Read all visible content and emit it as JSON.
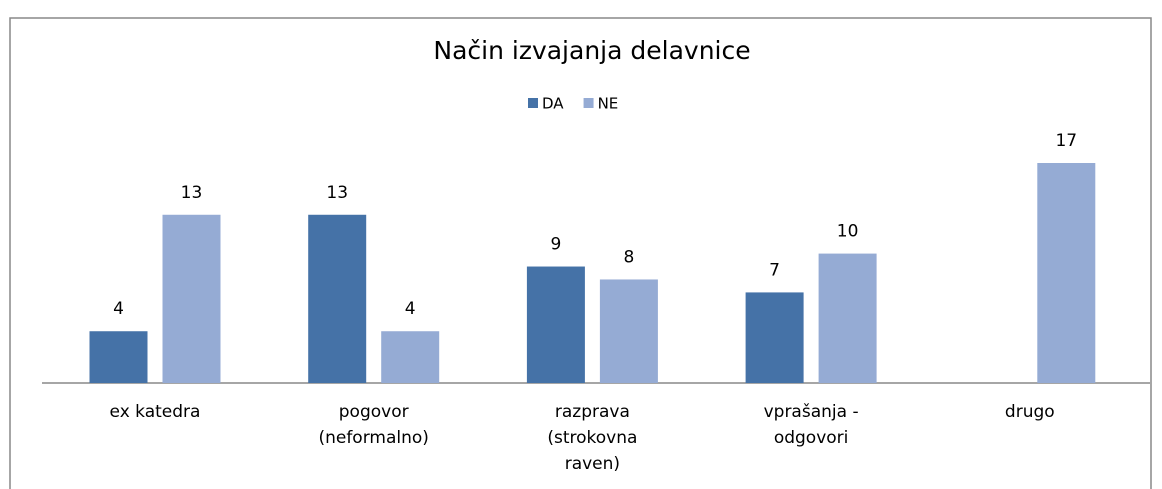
{
  "chart_data": {
    "type": "bar",
    "title": "Način izvajanja delavnice",
    "categories": [
      "ex katedra",
      "pogovor (neformalno)",
      "razprava (strokovna raven)",
      "vprašanja - odgovori",
      "drugo"
    ],
    "series": [
      {
        "name": "DA",
        "color": "#4572a7",
        "values": [
          4,
          13,
          9,
          7,
          null
        ]
      },
      {
        "name": "NE",
        "color": "#95abd4",
        "values": [
          13,
          4,
          8,
          10,
          17
        ]
      }
    ],
    "ylim": [
      0,
      17
    ],
    "legend": "top"
  }
}
